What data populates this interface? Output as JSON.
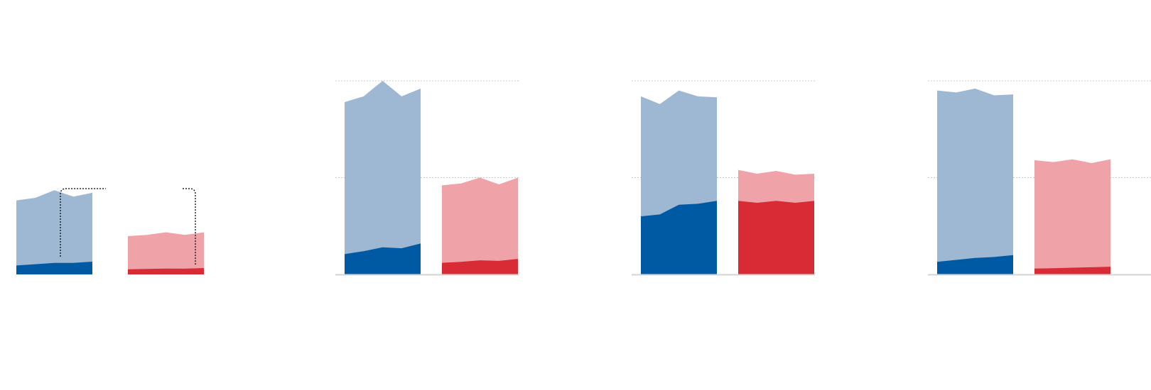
{
  "colors": {
    "blue_light": "#9eb8d4",
    "blue_dark": "#005aa3",
    "red_light": "#efa3a8",
    "red_dark": "#d92b35",
    "gridline": "#c8c8c8",
    "baseline": "#d4d4d4",
    "annotation_line": "#222222"
  },
  "chart_data": [
    {
      "type": "area",
      "gridlines": false,
      "ylim": [
        0,
        100
      ],
      "x": [
        1,
        2,
        3,
        4,
        5
      ],
      "groups": [
        {
          "color": "blue",
          "total": [
            58,
            60,
            66,
            61,
            64
          ],
          "share": [
            7,
            8,
            9,
            9,
            10
          ]
        },
        {
          "color": "red",
          "total": [
            30,
            31,
            33,
            31,
            33
          ],
          "share": [
            4,
            4.3,
            4.6,
            4.5,
            5
          ]
        }
      ],
      "annotations": [
        {
          "type": "bracket",
          "shape": "dotted-elbow",
          "group": "blue"
        },
        {
          "type": "bracket",
          "shape": "dotted-elbow",
          "group": "red"
        }
      ]
    },
    {
      "type": "area",
      "gridlines": true,
      "ylim": [
        0,
        100
      ],
      "x": [
        1,
        2,
        3,
        4,
        5
      ],
      "groups": [
        {
          "color": "blue",
          "total": [
            89,
            92,
            100,
            92,
            96
          ],
          "share": [
            10.5,
            12,
            14,
            13.5,
            16
          ]
        },
        {
          "color": "red",
          "total": [
            46,
            47,
            50,
            46.5,
            50
          ],
          "share": [
            6,
            6.5,
            7.3,
            7,
            8
          ]
        }
      ]
    },
    {
      "type": "area",
      "gridlines": true,
      "ylim": [
        0,
        100
      ],
      "x": [
        1,
        2,
        3,
        4,
        5
      ],
      "groups": [
        {
          "color": "blue",
          "total": [
            92,
            88,
            95,
            92,
            91.5
          ],
          "share": [
            30,
            31,
            36,
            36.5,
            38
          ]
        },
        {
          "color": "red",
          "total": [
            54,
            52,
            53.5,
            51.5,
            52
          ],
          "share": [
            38,
            37,
            38,
            37,
            38
          ]
        }
      ]
    },
    {
      "type": "area",
      "gridlines": true,
      "ylim": [
        0,
        100
      ],
      "x": [
        1,
        2,
        3,
        4,
        5
      ],
      "groups": [
        {
          "color": "blue",
          "total": [
            95,
            94,
            96,
            92.5,
            93
          ],
          "share": [
            6.5,
            7.5,
            8.5,
            9,
            10
          ]
        },
        {
          "color": "red",
          "total": [
            59,
            58,
            59.5,
            57.5,
            59.5
          ],
          "share": [
            3,
            3.2,
            3.5,
            3.7,
            4
          ]
        }
      ]
    }
  ]
}
